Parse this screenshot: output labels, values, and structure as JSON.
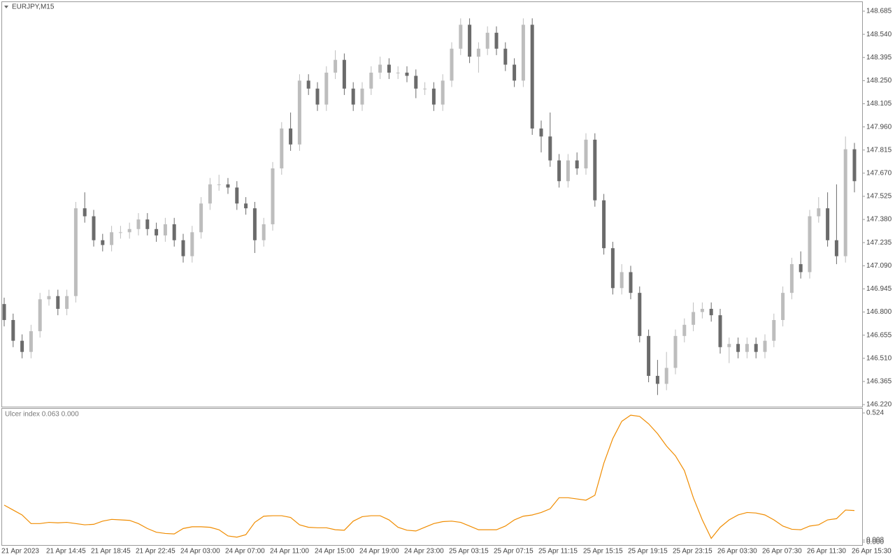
{
  "chart_data": [
    {
      "type": "candlestick",
      "title": "EURJPY,M15",
      "categories": [
        "21 Apr 2023",
        null,
        null,
        null,
        null,
        "21 Apr 14:45",
        null,
        null,
        null,
        null,
        "21 Apr 18:45",
        null,
        null,
        null,
        null,
        "21 Apr 22:45",
        null,
        null,
        null,
        null,
        "24 Apr 03:00",
        null,
        null,
        null,
        null,
        "24 Apr 07:00",
        null,
        null,
        null,
        null,
        "24 Apr 11:00",
        null,
        null,
        null,
        null,
        "24 Apr 15:00",
        null,
        null,
        null,
        null,
        "24 Apr 19:00",
        null,
        null,
        null,
        null,
        "24 Apr 23:00",
        null,
        null,
        null,
        null,
        "25 Apr 03:15",
        null,
        null,
        null,
        null,
        "25 Apr 07:15",
        null,
        null,
        null,
        null,
        "25 Apr 11:15",
        null,
        null,
        null,
        null,
        "25 Apr 15:15",
        null,
        null,
        null,
        null,
        "25 Apr 19:15",
        null,
        null,
        null,
        null,
        "25 Apr 23:15",
        null,
        null,
        null,
        null,
        "26 Apr 03:30",
        null,
        null,
        null,
        null,
        "26 Apr 07:30",
        null,
        null,
        null,
        null,
        "26 Apr 11:30",
        null,
        null,
        null,
        null,
        "26 Apr 15:30"
      ],
      "open": [
        146.85,
        146.75,
        146.62,
        146.55,
        146.68,
        146.88,
        146.9,
        146.82,
        146.9,
        147.45,
        147.4,
        147.25,
        147.22,
        147.3,
        147.3,
        147.32,
        147.38,
        147.32,
        147.28,
        147.35,
        147.25,
        147.15,
        147.3,
        147.48,
        147.6,
        147.6,
        147.58,
        147.48,
        147.45,
        147.25,
        147.35,
        147.7,
        147.95,
        147.85,
        148.25,
        148.2,
        148.1,
        148.3,
        148.38,
        148.2,
        148.1,
        148.2,
        148.3,
        148.35,
        148.3,
        148.3,
        148.28,
        148.2,
        148.2,
        148.1,
        148.25,
        148.45,
        148.6,
        148.4,
        148.45,
        148.55,
        148.45,
        148.35,
        148.25,
        148.6,
        147.95,
        147.9,
        147.75,
        147.62,
        147.75,
        147.7,
        147.88,
        147.5,
        147.2,
        146.95,
        147.05,
        146.92,
        146.65,
        146.4,
        146.35,
        146.45,
        146.65,
        146.72,
        146.8,
        146.82,
        146.78,
        146.58,
        146.6,
        146.55,
        146.6,
        146.55,
        146.62,
        146.75,
        146.92,
        147.1,
        147.05,
        147.4,
        147.45,
        147.25,
        147.15,
        147.82
      ],
      "high": [
        146.89,
        146.79,
        146.66,
        146.72,
        146.92,
        146.94,
        146.94,
        146.94,
        147.49,
        147.55,
        147.44,
        147.29,
        147.34,
        147.34,
        147.36,
        147.42,
        147.42,
        147.36,
        147.39,
        147.39,
        147.29,
        147.34,
        147.52,
        147.64,
        147.66,
        147.64,
        147.62,
        147.52,
        147.49,
        147.39,
        147.74,
        147.99,
        148.05,
        148.29,
        148.29,
        148.24,
        148.34,
        148.44,
        148.42,
        148.24,
        148.24,
        148.34,
        148.4,
        148.39,
        148.34,
        148.34,
        148.32,
        148.24,
        148.24,
        148.29,
        148.49,
        148.64,
        148.64,
        148.49,
        148.59,
        148.59,
        148.49,
        148.39,
        148.64,
        148.64,
        148.0,
        148.05,
        147.79,
        147.79,
        147.8,
        147.92,
        147.92,
        147.54,
        147.24,
        147.1,
        147.09,
        146.96,
        146.69,
        146.5,
        146.55,
        146.69,
        146.76,
        146.86,
        146.86,
        146.86,
        146.82,
        146.64,
        146.64,
        146.64,
        146.64,
        146.66,
        146.79,
        146.96,
        147.14,
        147.18,
        147.44,
        147.52,
        147.55,
        147.6,
        147.9,
        147.86
      ],
      "low": [
        146.71,
        146.58,
        146.51,
        146.51,
        146.64,
        146.84,
        146.78,
        146.78,
        146.86,
        147.36,
        147.21,
        147.18,
        147.18,
        147.26,
        147.26,
        147.28,
        147.28,
        147.24,
        147.24,
        147.21,
        147.11,
        147.11,
        147.26,
        147.44,
        147.56,
        147.54,
        147.44,
        147.41,
        147.17,
        147.21,
        147.31,
        147.66,
        147.81,
        147.81,
        148.16,
        148.06,
        148.06,
        148.26,
        148.16,
        148.06,
        148.06,
        148.16,
        148.26,
        148.26,
        148.26,
        148.24,
        148.14,
        148.16,
        148.06,
        148.06,
        148.21,
        148.41,
        148.36,
        148.3,
        148.41,
        148.41,
        148.31,
        148.21,
        148.21,
        147.91,
        147.8,
        147.71,
        147.58,
        147.58,
        147.66,
        147.66,
        147.46,
        147.16,
        146.91,
        146.91,
        146.88,
        146.61,
        146.36,
        146.28,
        146.31,
        146.41,
        146.61,
        146.68,
        146.76,
        146.74,
        146.54,
        146.48,
        146.51,
        146.51,
        146.51,
        146.51,
        146.58,
        146.71,
        146.88,
        147.01,
        147.01,
        147.36,
        147.21,
        147.1,
        147.11,
        147.55
      ],
      "close": [
        146.75,
        146.62,
        146.55,
        146.68,
        146.88,
        146.9,
        146.82,
        146.9,
        147.45,
        147.4,
        147.25,
        147.22,
        147.3,
        147.3,
        147.32,
        147.38,
        147.32,
        147.28,
        147.35,
        147.25,
        147.15,
        147.3,
        147.48,
        147.6,
        147.6,
        147.58,
        147.48,
        147.45,
        147.25,
        147.35,
        147.7,
        147.95,
        147.85,
        148.25,
        148.2,
        148.1,
        148.3,
        148.38,
        148.2,
        148.1,
        148.2,
        148.3,
        148.35,
        148.3,
        148.3,
        148.28,
        148.2,
        148.2,
        148.1,
        148.25,
        148.45,
        148.6,
        148.4,
        148.45,
        148.55,
        148.45,
        148.35,
        148.25,
        148.6,
        147.95,
        147.9,
        147.75,
        147.62,
        147.75,
        147.7,
        147.88,
        147.5,
        147.2,
        146.95,
        147.05,
        146.92,
        146.65,
        146.4,
        146.35,
        146.45,
        146.65,
        146.72,
        146.8,
        146.82,
        146.78,
        146.58,
        146.6,
        146.55,
        146.6,
        146.55,
        146.62,
        146.75,
        146.92,
        147.1,
        147.05,
        147.4,
        147.45,
        147.25,
        147.15,
        147.82,
        147.62
      ],
      "up_color": "#bdbdbd",
      "down_color": "#6b6b6b",
      "ylim": [
        146.207,
        148.742
      ],
      "yticks": [
        148.685,
        {
          "value": 148.54,
          "label": "148.540"
        },
        148.395,
        {
          "value": 148.25,
          "label": "148.250"
        },
        148.105,
        {
          "value": 147.96,
          "label": "147.960"
        },
        147.815,
        {
          "value": 147.67,
          "label": "147.670"
        },
        147.525,
        {
          "value": 147.38,
          "label": "147.380"
        },
        147.235,
        {
          "value": 147.09,
          "label": "147.090"
        },
        146.945,
        {
          "value": 146.8,
          "label": "146.800"
        },
        146.655,
        {
          "value": 146.51,
          "label": "146.510"
        },
        146.365,
        {
          "value": 146.22,
          "label": "146.220"
        }
      ]
    },
    {
      "type": "line",
      "title": "Ulcer index 0.063 0.000",
      "color": "#f08c00",
      "values": [
        0.15,
        0.13,
        0.11,
        0.075,
        0.075,
        0.08,
        0.078,
        0.08,
        0.075,
        0.07,
        0.072,
        0.085,
        0.092,
        0.09,
        0.088,
        0.075,
        0.055,
        0.04,
        0.035,
        0.033,
        0.055,
        0.062,
        0.062,
        0.06,
        0.05,
        0.025,
        0.02,
        0.03,
        0.08,
        0.105,
        0.107,
        0.107,
        0.1,
        0.07,
        0.06,
        0.058,
        0.058,
        0.05,
        0.048,
        0.085,
        0.103,
        0.107,
        0.107,
        0.09,
        0.06,
        0.048,
        0.045,
        0.06,
        0.075,
        0.083,
        0.085,
        0.08,
        0.065,
        0.05,
        0.05,
        0.05,
        0.065,
        0.09,
        0.105,
        0.11,
        0.12,
        0.135,
        0.18,
        0.18,
        0.175,
        0.17,
        0.19,
        0.32,
        0.42,
        0.49,
        0.515,
        0.51,
        0.48,
        0.44,
        0.39,
        0.35,
        0.29,
        0.18,
        0.09,
        0.015,
        0.06,
        0.09,
        0.11,
        0.12,
        0.118,
        0.11,
        0.09,
        0.065,
        0.052,
        0.05,
        0.065,
        0.07,
        0.09,
        0.095,
        0.13,
        0.128
      ],
      "ylim": [
        -0.012,
        0.541
      ],
      "yticks": [
        0.524,
        0.008,
        {
          "value": 0,
          "label": "0.000"
        }
      ]
    }
  ]
}
